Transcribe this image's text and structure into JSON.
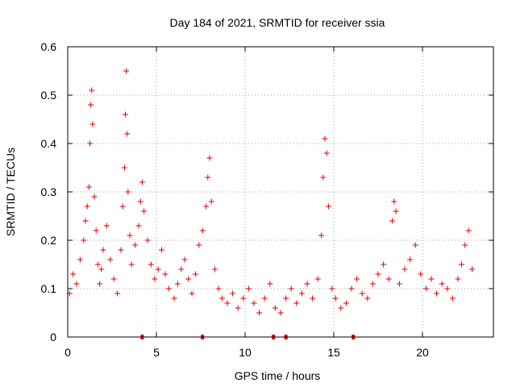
{
  "chart_data": {
    "type": "scatter",
    "title": "Day 184 of 2021, SRMTID for receiver ssia",
    "xlabel": "GPS time / hours",
    "ylabel": "SRMTID / TECUs",
    "xlim": [
      0,
      24
    ],
    "ylim": [
      0,
      0.6
    ],
    "xticks": [
      0,
      5,
      10,
      15,
      20
    ],
    "yticks": [
      0,
      0.1,
      0.2,
      0.3,
      0.4,
      0.5,
      0.6
    ],
    "xtick_labels": [
      "0",
      "5",
      "10",
      "15",
      "20"
    ],
    "ytick_labels": [
      "0",
      "0.1",
      "0.2",
      "0.3",
      "0.4",
      "0.5",
      "0.6"
    ],
    "grid": true,
    "marker": "+",
    "color": "#e00000",
    "gap_markers_x": [
      4.2,
      7.6,
      11.6,
      12.3,
      16.1
    ],
    "series": [
      {
        "name": "SRMTID",
        "x": [
          0.1,
          0.3,
          0.5,
          0.7,
          0.9,
          1.0,
          1.1,
          1.2,
          1.25,
          1.3,
          1.35,
          1.4,
          1.5,
          1.6,
          1.7,
          1.8,
          1.9,
          2.0,
          2.2,
          2.4,
          2.6,
          2.8,
          3.0,
          3.1,
          3.2,
          3.25,
          3.3,
          3.35,
          3.4,
          3.5,
          3.6,
          3.8,
          4.0,
          4.1,
          4.2,
          4.3,
          4.5,
          4.7,
          4.9,
          5.1,
          5.3,
          5.5,
          5.7,
          6.0,
          6.2,
          6.4,
          6.6,
          6.8,
          7.0,
          7.2,
          7.4,
          7.6,
          7.8,
          7.9,
          8.0,
          8.1,
          8.3,
          8.5,
          8.7,
          9.0,
          9.3,
          9.6,
          9.9,
          10.2,
          10.5,
          10.8,
          11.1,
          11.4,
          11.7,
          12.0,
          12.3,
          12.6,
          12.9,
          13.2,
          13.5,
          13.8,
          14.1,
          14.3,
          14.4,
          14.5,
          14.6,
          14.7,
          14.9,
          15.1,
          15.4,
          15.7,
          16.0,
          16.3,
          16.6,
          16.9,
          17.2,
          17.5,
          17.8,
          18.1,
          18.3,
          18.4,
          18.5,
          18.7,
          19.0,
          19.3,
          19.6,
          19.9,
          20.2,
          20.5,
          20.8,
          21.1,
          21.4,
          21.7,
          22.0,
          22.2,
          22.4,
          22.6,
          22.8
        ],
        "y": [
          0.09,
          0.13,
          0.11,
          0.16,
          0.2,
          0.24,
          0.27,
          0.31,
          0.4,
          0.48,
          0.51,
          0.44,
          0.29,
          0.22,
          0.15,
          0.11,
          0.14,
          0.18,
          0.23,
          0.16,
          0.12,
          0.09,
          0.18,
          0.27,
          0.35,
          0.46,
          0.55,
          0.42,
          0.3,
          0.21,
          0.15,
          0.19,
          0.23,
          0.28,
          0.32,
          0.26,
          0.2,
          0.15,
          0.12,
          0.14,
          0.18,
          0.13,
          0.1,
          0.08,
          0.11,
          0.14,
          0.16,
          0.12,
          0.09,
          0.13,
          0.19,
          0.22,
          0.27,
          0.33,
          0.37,
          0.28,
          0.14,
          0.1,
          0.08,
          0.07,
          0.09,
          0.06,
          0.08,
          0.1,
          0.07,
          0.05,
          0.08,
          0.11,
          0.06,
          0.05,
          0.08,
          0.1,
          0.07,
          0.09,
          0.11,
          0.08,
          0.12,
          0.21,
          0.33,
          0.41,
          0.38,
          0.27,
          0.1,
          0.08,
          0.06,
          0.07,
          0.1,
          0.12,
          0.09,
          0.08,
          0.11,
          0.13,
          0.15,
          0.12,
          0.24,
          0.28,
          0.26,
          0.11,
          0.14,
          0.16,
          0.19,
          0.13,
          0.1,
          0.12,
          0.09,
          0.11,
          0.1,
          0.08,
          0.12,
          0.15,
          0.19,
          0.22,
          0.14
        ]
      }
    ]
  }
}
